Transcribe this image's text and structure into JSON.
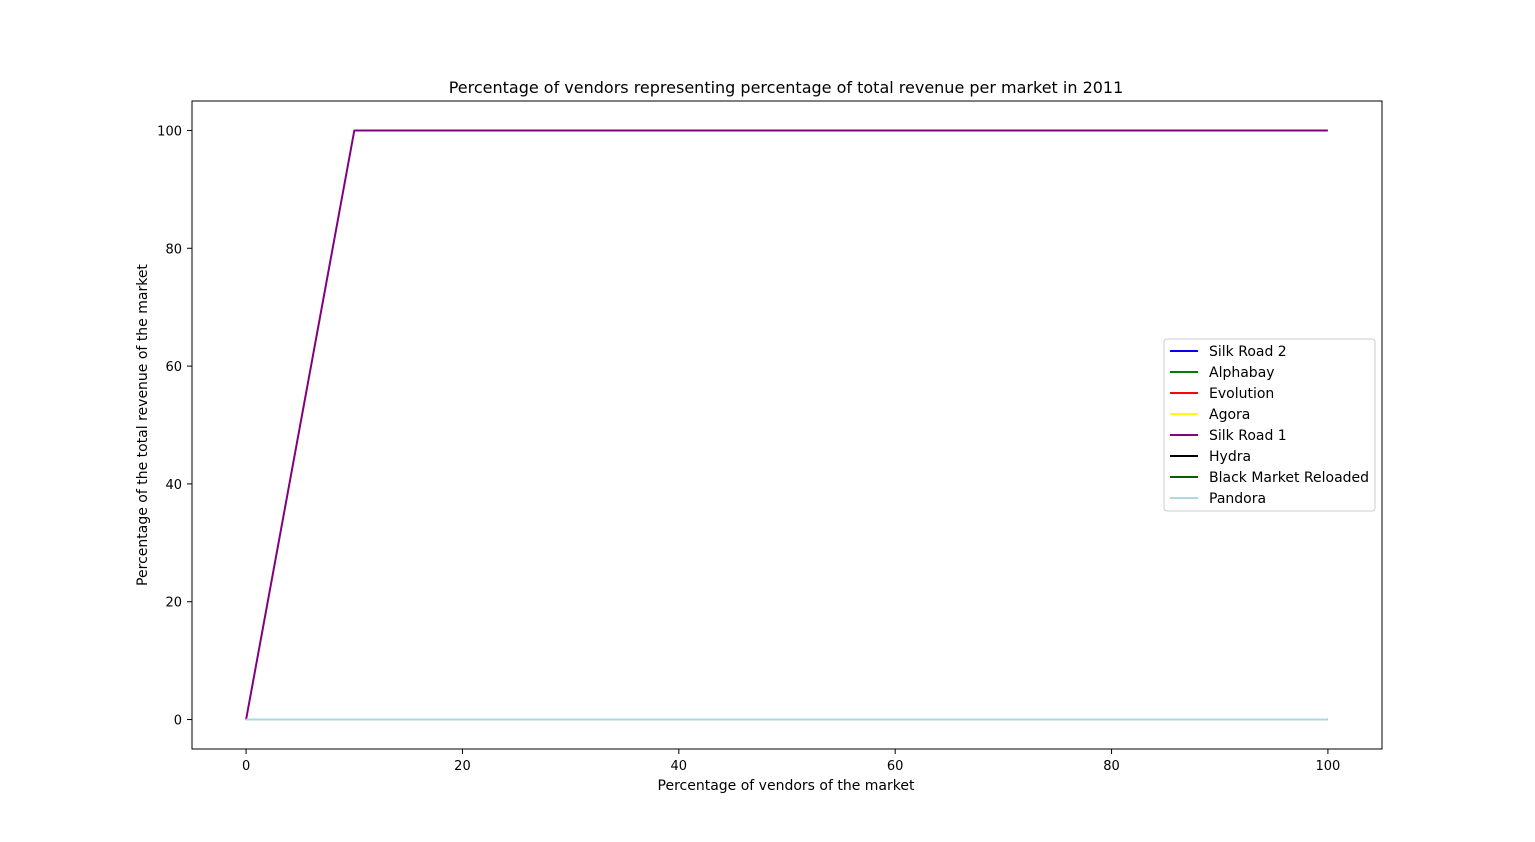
{
  "chart_data": {
    "type": "line",
    "title": "Percentage of vendors representing percentage of total revenue per market in 2011",
    "xlabel": "Percentage of vendors of the market",
    "ylabel": "Percentage of the total revenue of the market",
    "xlim": [
      -5,
      105
    ],
    "ylim": [
      -5,
      105
    ],
    "xticks": [
      0,
      20,
      40,
      60,
      80,
      100
    ],
    "yticks": [
      0,
      20,
      40,
      60,
      80,
      100
    ],
    "grid": false,
    "legend_position": "center-right",
    "series": [
      {
        "name": "Silk Road 2",
        "color": "#0000ff",
        "x": [
          0,
          100
        ],
        "y": [
          0,
          0
        ]
      },
      {
        "name": "Alphabay",
        "color": "#008000",
        "x": [
          0,
          100
        ],
        "y": [
          0,
          0
        ]
      },
      {
        "name": "Evolution",
        "color": "#ff0000",
        "x": [
          0,
          100
        ],
        "y": [
          0,
          0
        ]
      },
      {
        "name": "Agora",
        "color": "#ffff00",
        "x": [
          0,
          100
        ],
        "y": [
          0,
          0
        ]
      },
      {
        "name": "Silk Road 1",
        "color": "#800080",
        "x": [
          0,
          10,
          100
        ],
        "y": [
          0,
          100,
          100
        ]
      },
      {
        "name": "Hydra",
        "color": "#000000",
        "x": [
          0,
          100
        ],
        "y": [
          0,
          0
        ]
      },
      {
        "name": "Black Market Reloaded",
        "color": "#006400",
        "x": [
          0,
          100
        ],
        "y": [
          0,
          0
        ]
      },
      {
        "name": "Pandora",
        "color": "#add8e6",
        "x": [
          0,
          100
        ],
        "y": [
          0,
          0
        ]
      }
    ]
  }
}
